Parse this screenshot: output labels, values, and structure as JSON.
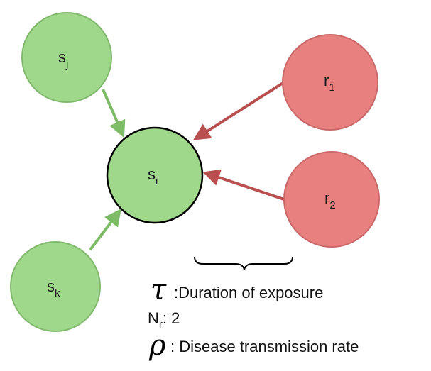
{
  "colors": {
    "susceptible_fill": "#9fd88a",
    "susceptible_stroke": "#80b86c",
    "central_stroke": "#000000",
    "infected_fill": "#e88080",
    "infected_stroke": "#c96868",
    "green_arrow": "#7dbb67",
    "red_arrow": "#b9504f"
  },
  "nodes": {
    "sj": {
      "base": "s",
      "sub": "j"
    },
    "si": {
      "base": "s",
      "sub": "i"
    },
    "sk": {
      "base": "s",
      "sub": "k"
    },
    "r1": {
      "base": "r",
      "sub": "1"
    },
    "r2": {
      "base": "r",
      "sub": "2"
    }
  },
  "legend": {
    "tau_symbol": "τ",
    "tau_text": ":Duration of exposure",
    "nr_base": "N",
    "nr_sub": "r",
    "nr_text": ": 2",
    "rho_symbol": "ρ",
    "rho_text": ": Disease transmission rate"
  }
}
